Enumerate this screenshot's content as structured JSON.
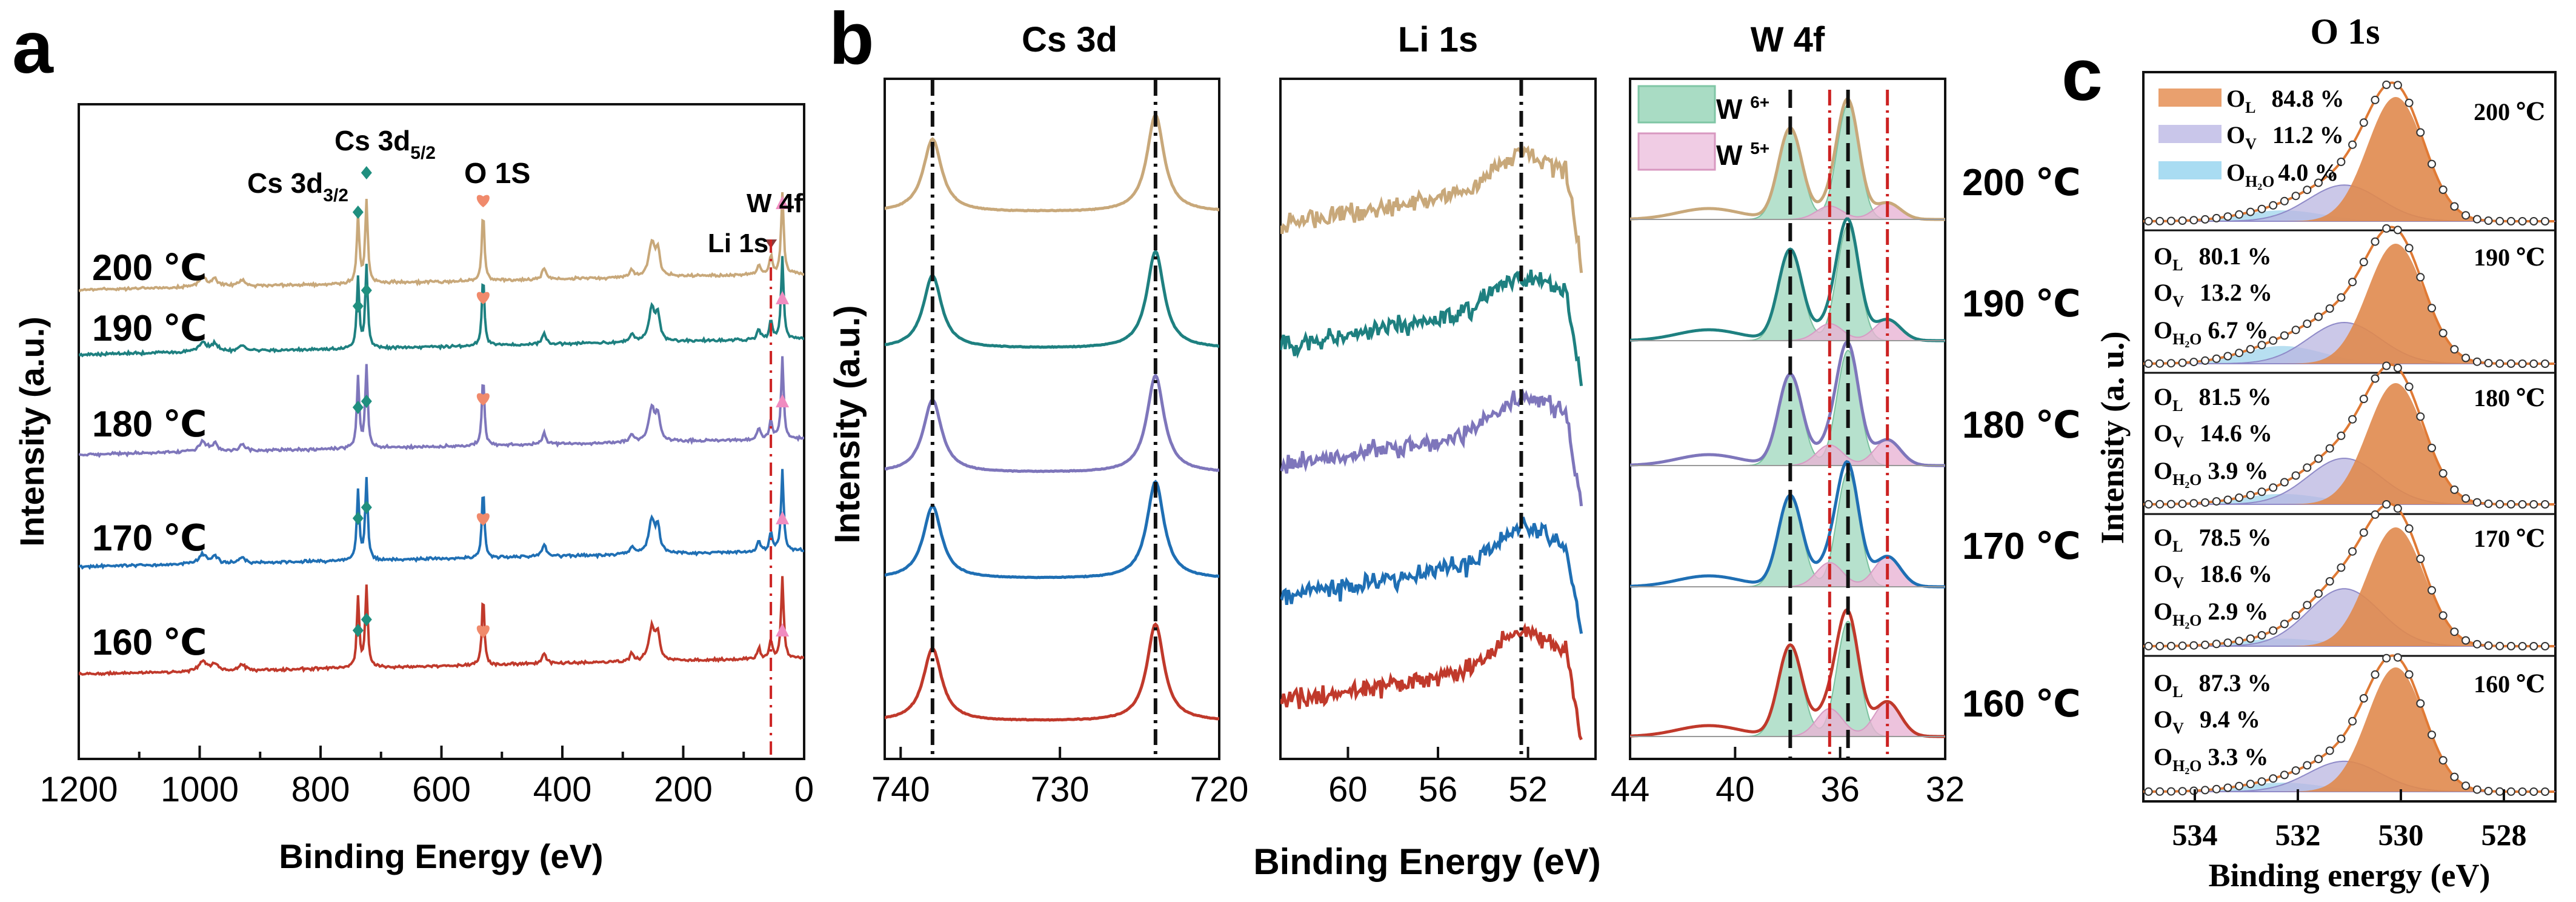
{
  "panel_letters": {
    "a": "a",
    "b": "b",
    "c": "c"
  },
  "temperatures": [
    "200 ℃",
    "190 ℃",
    "180 ℃",
    "170 ℃",
    "160 ℃"
  ],
  "colors": {
    "200": "#c8a87a",
    "190": "#1e8080",
    "180": "#7e76bb",
    "170": "#1f6fb4",
    "160": "#c0392b",
    "marker_diamond": "#1f8f7f",
    "marker_heart": "#f08a6c",
    "marker_triangle": "#f08cc0",
    "w6_fill": "#a9dcc4",
    "w5_fill": "#e8b4d4",
    "ol_fill": "#e08a4e",
    "ov_fill": "#b9b6e0",
    "oh2o_fill": "#9fd4ec",
    "red_dash": "#cc2222",
    "dash_black": "#111111"
  },
  "chart_data": [
    {
      "id": "a",
      "type": "line",
      "title": "",
      "xlabel": "Binding Energy (eV)",
      "ylabel": "Intensity (a.u.)",
      "xlim": [
        1200,
        0
      ],
      "x_ticks": [
        "1200",
        "1000",
        "800",
        "600",
        "400",
        "200",
        "0"
      ],
      "series": [
        {
          "name": "200 ℃",
          "label": "200 ℃"
        },
        {
          "name": "190 ℃",
          "label": "190 ℃"
        },
        {
          "name": "180 ℃",
          "label": "180 ℃"
        },
        {
          "name": "170 ℃",
          "label": "170 ℃"
        },
        {
          "name": "160 ℃",
          "label": "160 ℃"
        }
      ],
      "peaks_eV": {
        "Cs 3d3/2": 738,
        "Cs 3d5/2": 724,
        "O 1S": 531,
        "Li 1s": 55,
        "W 4f": 36
      },
      "annotations": {
        "cs32": "Cs 3d",
        "cs32_sub": "3/2",
        "cs52": "Cs 3d",
        "cs52_sub": "5/2",
        "o1s": "O 1S",
        "li1s": "Li 1s",
        "w4f": "W 4f"
      }
    },
    {
      "id": "b-cs3d",
      "type": "line",
      "title": "Cs 3d",
      "xlim": [
        741,
        720
      ],
      "x_ticks": [
        "740",
        "730",
        "720"
      ],
      "x_tick_values": [
        740,
        730,
        720
      ],
      "reference_lines_eV": [
        738,
        724
      ]
    },
    {
      "id": "b-li1s",
      "type": "line",
      "title": "Li 1s",
      "xlim": [
        63,
        49
      ],
      "x_ticks": [
        "60",
        "56",
        "52"
      ],
      "x_tick_values": [
        60,
        56,
        52
      ],
      "reference_lines_eV": [
        52.3
      ]
    },
    {
      "id": "b-w4f",
      "type": "line",
      "title": "W 4f",
      "xlim": [
        44,
        32
      ],
      "x_ticks": [
        "44",
        "40",
        "36",
        "32"
      ],
      "x_tick_values": [
        44,
        40,
        36,
        32
      ],
      "legend": [
        {
          "base": "W ",
          "sup": "6+"
        },
        {
          "base": "W ",
          "sup": "5+"
        }
      ],
      "w6_peaks_eV": [
        37.9,
        35.7
      ],
      "w5_peaks_eV": [
        36.4,
        34.2
      ],
      "b_xlabel": "Binding Energy (eV)",
      "b_ylabel": "Intensity (a.u.)"
    },
    {
      "id": "c",
      "type": "area",
      "title": "O 1s",
      "xlabel": "Binding energy (eV)",
      "ylabel": "Intensity (a. u.)",
      "xlim": [
        535,
        527
      ],
      "x_ticks": [
        "534",
        "532",
        "530",
        "528"
      ],
      "x_tick_values": [
        534,
        532,
        530,
        528
      ],
      "peaks_eV": {
        "OL": 530.1,
        "OV": 531.1,
        "OH2O": 532.3
      },
      "series": [
        {
          "temp": "200 ℃",
          "OL": "84.8 %",
          "OV": "11.2 %",
          "OH2O": "4.0 %"
        },
        {
          "temp": "190 ℃",
          "OL": "80.1 %",
          "OV": "13.2 %",
          "OH2O": "6.7 %"
        },
        {
          "temp": "180 ℃",
          "OL": "81.5 %",
          "OV": "14.6 %",
          "OH2O": "3.9 %"
        },
        {
          "temp": "170 ℃",
          "OL": "78.5 %",
          "OV": "18.6 %",
          "OH2O": "2.9 %"
        },
        {
          "temp": "160 ℃",
          "OL": "87.3 %",
          "OV": "9.4 %",
          "OH2O": "3.3 %"
        }
      ],
      "component_labels": {
        "OL_base": "O",
        "OL_sub": "L",
        "OV_base": "O",
        "OV_sub": "V",
        "OH2O_base": "O",
        "OH2O_sub": "H₂O"
      }
    }
  ]
}
